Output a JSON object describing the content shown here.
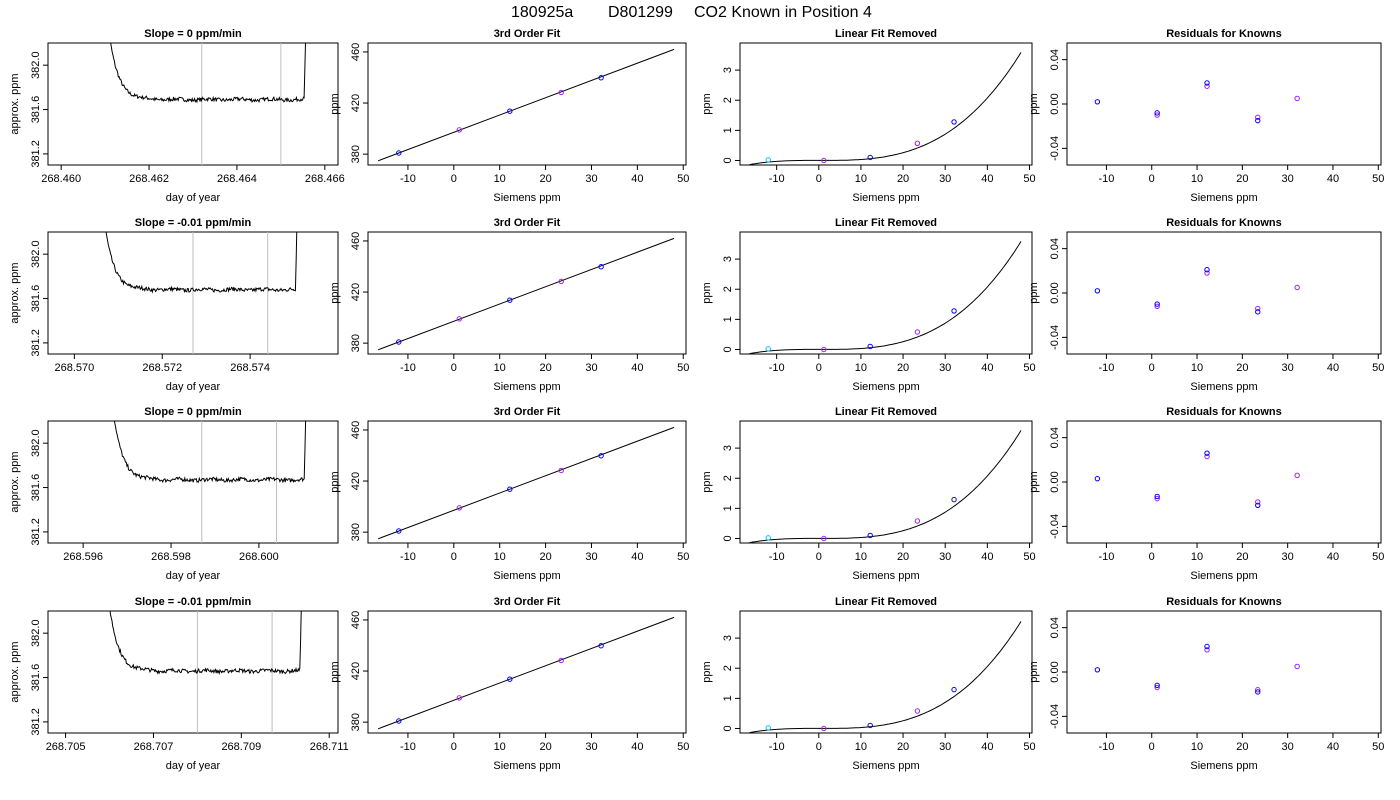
{
  "figure": {
    "run_id": "180925a",
    "tank_id": "D801299",
    "description": "CO2 Known in Position  4"
  },
  "colors": {
    "line": "#000000",
    "frame": "#000000",
    "marker_line": "#bebebe",
    "point_blue": "#0000ff",
    "point_purple": "#a020f0",
    "point_cyan": "#00bfff"
  },
  "chart_data": [
    {
      "type": "line",
      "row": 0,
      "col": 0,
      "title": "Slope =  0  ppm/min",
      "xlabel": "day of year",
      "ylabel": "approx. ppm",
      "xlim": [
        268.4597,
        268.4663
      ],
      "ylim": [
        381.1,
        382.2
      ],
      "xticks": [
        268.46,
        268.462,
        268.464,
        268.466
      ],
      "xtick_labels": [
        "268.460",
        "268.462",
        "268.464",
        "268.466"
      ],
      "yticks": [
        381.2,
        381.6,
        382.0
      ],
      "ytick_labels": [
        "381.2",
        "381.6",
        "382.0"
      ],
      "markers": [
        268.4632,
        268.465
      ],
      "trace": {
        "start": 268.461,
        "end": 268.4656,
        "level": 381.69,
        "overshoot": 382.6
      }
    },
    {
      "type": "line",
      "row": 1,
      "col": 0,
      "title": "Slope =  -0.01  ppm/min",
      "xlabel": "day of year",
      "ylabel": "approx. ppm",
      "xlim": [
        268.5694,
        268.576
      ],
      "ylim": [
        381.1,
        382.2
      ],
      "xticks": [
        268.57,
        268.572,
        268.574
      ],
      "xtick_labels": [
        "268.570",
        "268.572",
        "268.574"
      ],
      "yticks": [
        381.2,
        381.6,
        382.0
      ],
      "ytick_labels": [
        "381.2",
        "381.6",
        "382.0"
      ],
      "markers": [
        268.5727,
        268.5744
      ],
      "trace": {
        "start": 268.5706,
        "end": 268.5751,
        "level": 381.68,
        "overshoot": 382.6
      }
    },
    {
      "type": "line",
      "row": 2,
      "col": 0,
      "title": "Slope =  0  ppm/min",
      "xlabel": "day of year",
      "ylabel": "approx. ppm",
      "xlim": [
        268.5952,
        268.6018
      ],
      "ylim": [
        381.1,
        382.2
      ],
      "xticks": [
        268.596,
        268.598,
        268.6
      ],
      "xtick_labels": [
        "268.596",
        "268.598",
        "268.600"
      ],
      "yticks": [
        381.2,
        381.6,
        382.0
      ],
      "ytick_labels": [
        "381.2",
        "381.6",
        "382.0"
      ],
      "markers": [
        268.5987,
        268.6004
      ],
      "trace": {
        "start": 268.5966,
        "end": 268.6011,
        "level": 381.67,
        "overshoot": 382.6
      }
    },
    {
      "type": "line",
      "row": 3,
      "col": 0,
      "title": "Slope =  -0.01  ppm/min",
      "xlabel": "day of year",
      "ylabel": "approx. ppm",
      "xlim": [
        268.7046,
        268.7112
      ],
      "ylim": [
        381.1,
        382.2
      ],
      "xticks": [
        268.705,
        268.707,
        268.709,
        268.711
      ],
      "xtick_labels": [
        "268.705",
        "268.707",
        "268.709",
        "268.711"
      ],
      "yticks": [
        381.2,
        381.6,
        382.0
      ],
      "ytick_labels": [
        "381.2",
        "381.6",
        "382.0"
      ],
      "markers": [
        268.708,
        268.7097
      ],
      "trace": {
        "start": 268.7059,
        "end": 268.7104,
        "level": 381.66,
        "overshoot": 382.6
      }
    },
    {
      "type": "scatter",
      "row": 0,
      "col": 1,
      "title": "3rd Order Fit",
      "xlabel": "Siemens ppm",
      "ylabel": "ppm",
      "xlim": [
        -18.7,
        50.6
      ],
      "ylim": [
        371.5,
        467.0
      ],
      "xticks": [
        -10,
        0,
        10,
        20,
        30,
        40,
        50
      ],
      "xtick_labels": [
        "-10",
        "0",
        "10",
        "20",
        "30",
        "40",
        "50"
      ],
      "yticks": [
        380,
        420,
        460
      ],
      "ytick_labels": [
        "380",
        "420",
        "460"
      ],
      "points": [
        {
          "x": -12.0,
          "y": 380.9
        },
        {
          "x": 1.2,
          "y": 399.0
        },
        {
          "x": 12.2,
          "y": 413.6
        },
        {
          "x": 23.4,
          "y": 428.3
        },
        {
          "x": 32.1,
          "y": 439.8
        }
      ],
      "fit_line": {
        "x": [
          -16.5,
          48.0
        ],
        "y": [
          374.8,
          462.0
        ]
      }
    },
    {
      "type": "scatter",
      "row": 1,
      "col": 1,
      "title": "3rd Order Fit",
      "xlabel": "Siemens ppm",
      "ylabel": "ppm",
      "xlim": [
        -18.7,
        50.6
      ],
      "ylim": [
        371.5,
        467.0
      ],
      "xticks": [
        -10,
        0,
        10,
        20,
        30,
        40,
        50
      ],
      "xtick_labels": [
        "-10",
        "0",
        "10",
        "20",
        "30",
        "40",
        "50"
      ],
      "yticks": [
        380,
        420,
        460
      ],
      "ytick_labels": [
        "380",
        "420",
        "460"
      ],
      "points": [
        {
          "x": -12.0,
          "y": 380.9
        },
        {
          "x": 1.2,
          "y": 399.0
        },
        {
          "x": 12.2,
          "y": 413.6
        },
        {
          "x": 23.4,
          "y": 428.3
        },
        {
          "x": 32.1,
          "y": 439.8
        }
      ],
      "fit_line": {
        "x": [
          -16.5,
          48.0
        ],
        "y": [
          374.8,
          462.0
        ]
      }
    },
    {
      "type": "scatter",
      "row": 2,
      "col": 1,
      "title": "3rd Order Fit",
      "xlabel": "Siemens ppm",
      "ylabel": "ppm",
      "xlim": [
        -18.7,
        50.6
      ],
      "ylim": [
        371.5,
        467.0
      ],
      "xticks": [
        -10,
        0,
        10,
        20,
        30,
        40,
        50
      ],
      "xtick_labels": [
        "-10",
        "0",
        "10",
        "20",
        "30",
        "40",
        "50"
      ],
      "yticks": [
        380,
        420,
        460
      ],
      "ytick_labels": [
        "380",
        "420",
        "460"
      ],
      "points": [
        {
          "x": -12.0,
          "y": 380.9
        },
        {
          "x": 1.2,
          "y": 399.0
        },
        {
          "x": 12.2,
          "y": 413.6
        },
        {
          "x": 23.4,
          "y": 428.3
        },
        {
          "x": 32.1,
          "y": 439.8
        }
      ],
      "fit_line": {
        "x": [
          -16.5,
          48.0
        ],
        "y": [
          374.8,
          462.0
        ]
      }
    },
    {
      "type": "scatter",
      "row": 3,
      "col": 1,
      "title": "3rd Order Fit",
      "xlabel": "Siemens ppm",
      "ylabel": "ppm",
      "xlim": [
        -18.7,
        50.6
      ],
      "ylim": [
        371.5,
        467.0
      ],
      "xticks": [
        -10,
        0,
        10,
        20,
        30,
        40,
        50
      ],
      "xtick_labels": [
        "-10",
        "0",
        "10",
        "20",
        "30",
        "40",
        "50"
      ],
      "yticks": [
        380,
        420,
        460
      ],
      "ytick_labels": [
        "380",
        "420",
        "460"
      ],
      "points": [
        {
          "x": -12.0,
          "y": 380.9
        },
        {
          "x": 1.2,
          "y": 399.0
        },
        {
          "x": 12.2,
          "y": 413.6
        },
        {
          "x": 23.4,
          "y": 428.3
        },
        {
          "x": 32.1,
          "y": 439.8
        }
      ],
      "fit_line": {
        "x": [
          -16.5,
          48.0
        ],
        "y": [
          374.8,
          462.0
        ]
      }
    },
    {
      "type": "scatter",
      "row": 0,
      "col": 2,
      "title": "Linear Fit Removed",
      "xlabel": "Siemens ppm",
      "ylabel": "ppm",
      "xlim": [
        -18.7,
        50.6
      ],
      "ylim": [
        -0.15,
        3.9
      ],
      "xticks": [
        -10,
        0,
        10,
        20,
        30,
        40,
        50
      ],
      "xtick_labels": [
        "-10",
        "0",
        "10",
        "20",
        "30",
        "40",
        "50"
      ],
      "yticks": [
        0,
        1,
        2,
        3
      ],
      "ytick_labels": [
        "0",
        "1",
        "2",
        "3"
      ],
      "points": [
        {
          "x": -12.0,
          "y": 0.02
        },
        {
          "x": 1.2,
          "y": 0.0
        },
        {
          "x": 12.2,
          "y": 0.1
        },
        {
          "x": 23.4,
          "y": 0.57
        },
        {
          "x": 32.1,
          "y": 1.28
        }
      ],
      "curve": {
        "x_min": -16.5,
        "x_max": 48.0,
        "a": 0.002,
        "b": -0.00018,
        "c": 0.0,
        "d": 3.25e-05
      }
    },
    {
      "type": "scatter",
      "row": 1,
      "col": 2,
      "title": "Linear Fit Removed",
      "xlabel": "Siemens ppm",
      "ylabel": "ppm",
      "xlim": [
        -18.7,
        50.6
      ],
      "ylim": [
        -0.15,
        3.9
      ],
      "xticks": [
        -10,
        0,
        10,
        20,
        30,
        40,
        50
      ],
      "xtick_labels": [
        "-10",
        "0",
        "10",
        "20",
        "30",
        "40",
        "50"
      ],
      "yticks": [
        0,
        1,
        2,
        3
      ],
      "ytick_labels": [
        "0",
        "1",
        "2",
        "3"
      ],
      "points": [
        {
          "x": -12.0,
          "y": 0.02
        },
        {
          "x": 1.2,
          "y": 0.0
        },
        {
          "x": 12.2,
          "y": 0.1
        },
        {
          "x": 23.4,
          "y": 0.58
        },
        {
          "x": 32.1,
          "y": 1.28
        }
      ],
      "curve": {
        "x_min": -16.5,
        "x_max": 48.0,
        "a": 0.002,
        "b": -0.00018,
        "c": 0.0,
        "d": 3.25e-05
      }
    },
    {
      "type": "scatter",
      "row": 2,
      "col": 2,
      "title": "Linear Fit Removed",
      "xlabel": "Siemens ppm",
      "ylabel": "ppm",
      "xlim": [
        -18.7,
        50.6
      ],
      "ylim": [
        -0.15,
        3.9
      ],
      "xticks": [
        -10,
        0,
        10,
        20,
        30,
        40,
        50
      ],
      "xtick_labels": [
        "-10",
        "0",
        "10",
        "20",
        "30",
        "40",
        "50"
      ],
      "yticks": [
        0,
        1,
        2,
        3
      ],
      "ytick_labels": [
        "0",
        "1",
        "2",
        "3"
      ],
      "points": [
        {
          "x": -12.0,
          "y": 0.02
        },
        {
          "x": 1.2,
          "y": 0.0
        },
        {
          "x": 12.2,
          "y": 0.1
        },
        {
          "x": 23.4,
          "y": 0.58
        },
        {
          "x": 32.1,
          "y": 1.29
        }
      ],
      "curve": {
        "x_min": -16.5,
        "x_max": 48.0,
        "a": 0.002,
        "b": -0.00018,
        "c": 0.0,
        "d": 3.25e-05
      }
    },
    {
      "type": "scatter",
      "row": 3,
      "col": 2,
      "title": "Linear Fit Removed",
      "xlabel": "Siemens ppm",
      "ylabel": "ppm",
      "xlim": [
        -18.7,
        50.6
      ],
      "ylim": [
        -0.15,
        3.9
      ],
      "xticks": [
        -10,
        0,
        10,
        20,
        30,
        40,
        50
      ],
      "xtick_labels": [
        "-10",
        "0",
        "10",
        "20",
        "30",
        "40",
        "50"
      ],
      "yticks": [
        0,
        1,
        2,
        3
      ],
      "ytick_labels": [
        "0",
        "1",
        "2",
        "3"
      ],
      "points": [
        {
          "x": -12.0,
          "y": 0.02
        },
        {
          "x": 1.2,
          "y": 0.0
        },
        {
          "x": 12.2,
          "y": 0.1
        },
        {
          "x": 23.4,
          "y": 0.58
        },
        {
          "x": 32.1,
          "y": 1.29
        }
      ],
      "curve": {
        "x_min": -16.5,
        "x_max": 48.0,
        "a": 0.002,
        "b": -0.00018,
        "c": 0.0,
        "d": 3.22e-05
      }
    },
    {
      "type": "scatter",
      "row": 0,
      "col": 3,
      "title": "Residuals for Knowns",
      "xlabel": "Siemens ppm",
      "ylabel": "ppm",
      "xlim": [
        -18.7,
        50.6
      ],
      "ylim": [
        -0.055,
        0.055
      ],
      "xticks": [
        -10,
        0,
        10,
        20,
        30,
        40,
        50
      ],
      "xtick_labels": [
        "-10",
        "0",
        "10",
        "20",
        "30",
        "40",
        "50"
      ],
      "yticks": [
        -0.04,
        0.0,
        0.04
      ],
      "ytick_labels": [
        "-0.04",
        "0.00",
        "0.04"
      ],
      "points": [
        {
          "x": -12.0,
          "y": 0.002
        },
        {
          "x": 1.2,
          "y": -0.01
        },
        {
          "x": 1.2,
          "y": -0.008
        },
        {
          "x": 12.2,
          "y": 0.016
        },
        {
          "x": 12.2,
          "y": 0.019
        },
        {
          "x": 23.4,
          "y": -0.012
        },
        {
          "x": 23.4,
          "y": -0.015
        },
        {
          "x": 32.1,
          "y": 0.005
        }
      ]
    },
    {
      "type": "scatter",
      "row": 1,
      "col": 3,
      "title": "Residuals for Knowns",
      "xlabel": "Siemens ppm",
      "ylabel": "ppm",
      "xlim": [
        -18.7,
        50.6
      ],
      "ylim": [
        -0.055,
        0.055
      ],
      "xticks": [
        -10,
        0,
        10,
        20,
        30,
        40,
        50
      ],
      "xtick_labels": [
        "-10",
        "0",
        "10",
        "20",
        "30",
        "40",
        "50"
      ],
      "yticks": [
        -0.04,
        0.0,
        0.04
      ],
      "ytick_labels": [
        "-0.04",
        "0.00",
        "0.04"
      ],
      "points": [
        {
          "x": -12.0,
          "y": 0.002
        },
        {
          "x": 1.2,
          "y": -0.012
        },
        {
          "x": 1.2,
          "y": -0.01
        },
        {
          "x": 12.2,
          "y": 0.018
        },
        {
          "x": 12.2,
          "y": 0.021
        },
        {
          "x": 23.4,
          "y": -0.014
        },
        {
          "x": 23.4,
          "y": -0.017
        },
        {
          "x": 32.1,
          "y": 0.005
        }
      ]
    },
    {
      "type": "scatter",
      "row": 2,
      "col": 3,
      "title": "Residuals for Knowns",
      "xlabel": "Siemens ppm",
      "ylabel": "ppm",
      "xlim": [
        -18.7,
        50.6
      ],
      "ylim": [
        -0.055,
        0.055
      ],
      "xticks": [
        -10,
        0,
        10,
        20,
        30,
        40,
        50
      ],
      "xtick_labels": [
        "-10",
        "0",
        "10",
        "20",
        "30",
        "40",
        "50"
      ],
      "yticks": [
        -0.04,
        0.0,
        0.04
      ],
      "ytick_labels": [
        "-0.04",
        "0.00",
        "0.04"
      ],
      "points": [
        {
          "x": -12.0,
          "y": 0.003
        },
        {
          "x": 1.2,
          "y": -0.015
        },
        {
          "x": 1.2,
          "y": -0.013
        },
        {
          "x": 12.2,
          "y": 0.023
        },
        {
          "x": 12.2,
          "y": 0.026
        },
        {
          "x": 23.4,
          "y": -0.018
        },
        {
          "x": 23.4,
          "y": -0.021
        },
        {
          "x": 32.1,
          "y": 0.006
        }
      ]
    },
    {
      "type": "scatter",
      "row": 3,
      "col": 3,
      "title": "Residuals for Knowns",
      "xlabel": "Siemens ppm",
      "ylabel": "ppm",
      "xlim": [
        -18.7,
        50.6
      ],
      "ylim": [
        -0.055,
        0.055
      ],
      "xticks": [
        -10,
        0,
        10,
        20,
        30,
        40,
        50
      ],
      "xtick_labels": [
        "-10",
        "0",
        "10",
        "20",
        "30",
        "40",
        "50"
      ],
      "yticks": [
        -0.04,
        0.0,
        0.04
      ],
      "ytick_labels": [
        "-0.04",
        "0.00",
        "0.04"
      ],
      "points": [
        {
          "x": -12.0,
          "y": 0.002
        },
        {
          "x": 1.2,
          "y": -0.014
        },
        {
          "x": 1.2,
          "y": -0.012
        },
        {
          "x": 12.2,
          "y": 0.02
        },
        {
          "x": 12.2,
          "y": 0.023
        },
        {
          "x": 23.4,
          "y": -0.016
        },
        {
          "x": 23.4,
          "y": -0.018
        },
        {
          "x": 32.1,
          "y": 0.005
        }
      ]
    }
  ]
}
